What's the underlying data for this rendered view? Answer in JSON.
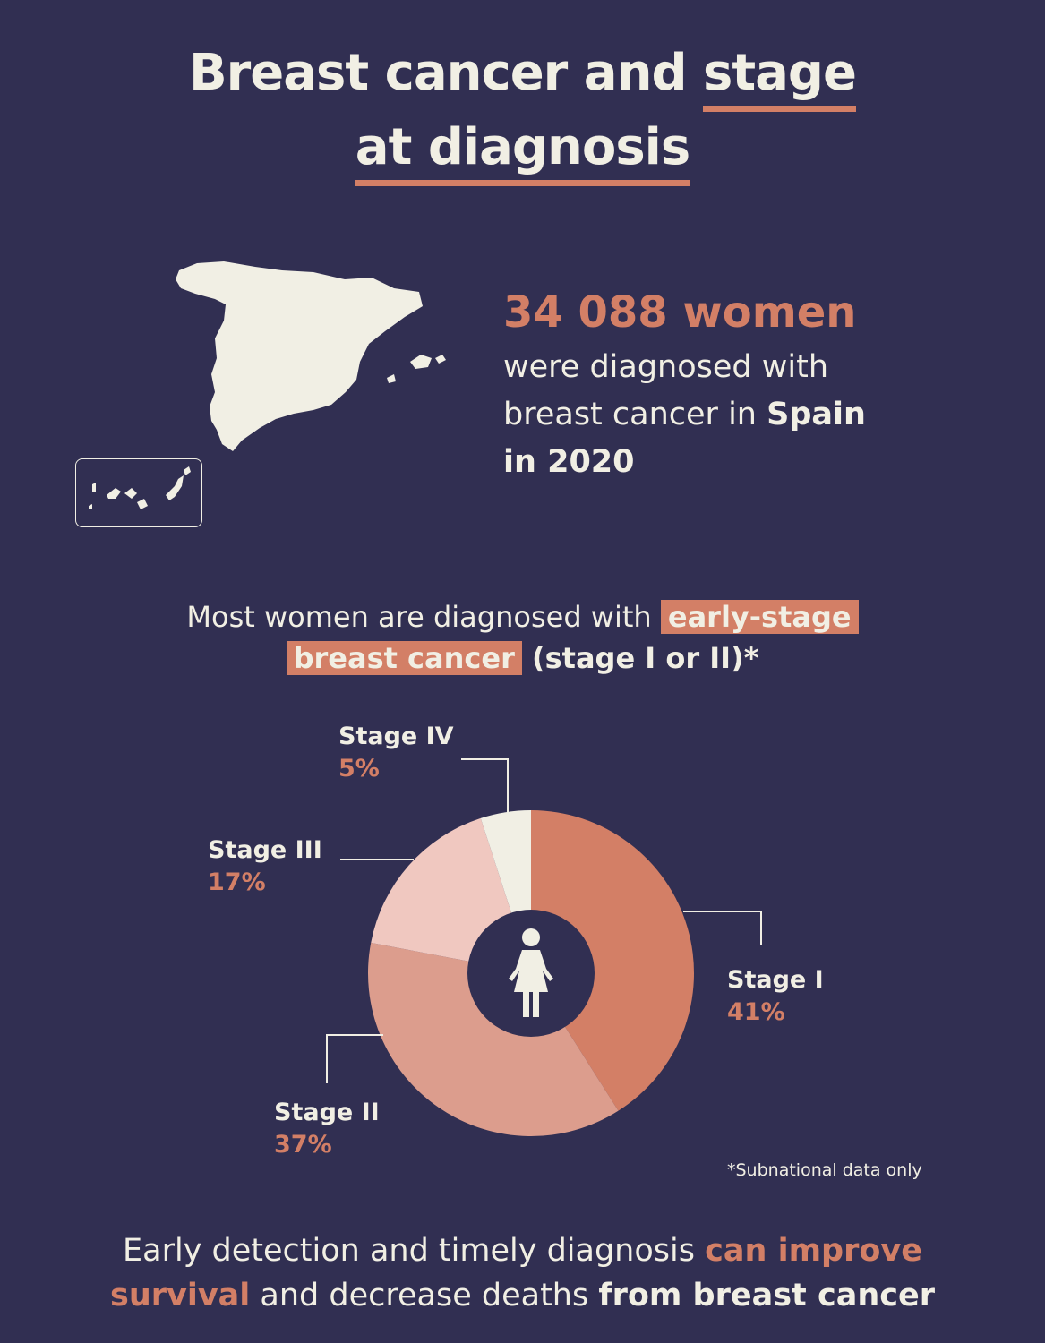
{
  "title": {
    "part1": "Breast cancer and ",
    "part2": "stage",
    "part3": "at diagnosis"
  },
  "stat": {
    "number": "34 088 women",
    "line1": "were diagnosed with",
    "line2_pre": "breast cancer in ",
    "country": "Spain",
    "year": "in 2020"
  },
  "subtitle": {
    "pre": "Most women are diagnosed with ",
    "hl1": "early-stage",
    "hl2": "breast cancer",
    "post": " (stage I or II)*"
  },
  "chart_data": {
    "type": "pie",
    "categories": [
      "Stage I",
      "Stage II",
      "Stage III",
      "Stage IV"
    ],
    "values": [
      41,
      37,
      17,
      5
    ],
    "labels": [
      "41%",
      "37%",
      "17%",
      "5%"
    ],
    "colors": [
      "#d37f66",
      "#dc9d8d",
      "#f0c8c0",
      "#f1efe4"
    ],
    "center_icon": "woman-icon",
    "note": "*Subnational data only"
  },
  "footer": {
    "pre": "Early detection and timely diagnosis ",
    "acc1": "can improve",
    "acc2": "survival",
    "mid": " and decrease deaths ",
    "bold": "from breast cancer"
  },
  "icons": {
    "map": "spain-map-icon",
    "canary": "canary-islands-icon"
  }
}
